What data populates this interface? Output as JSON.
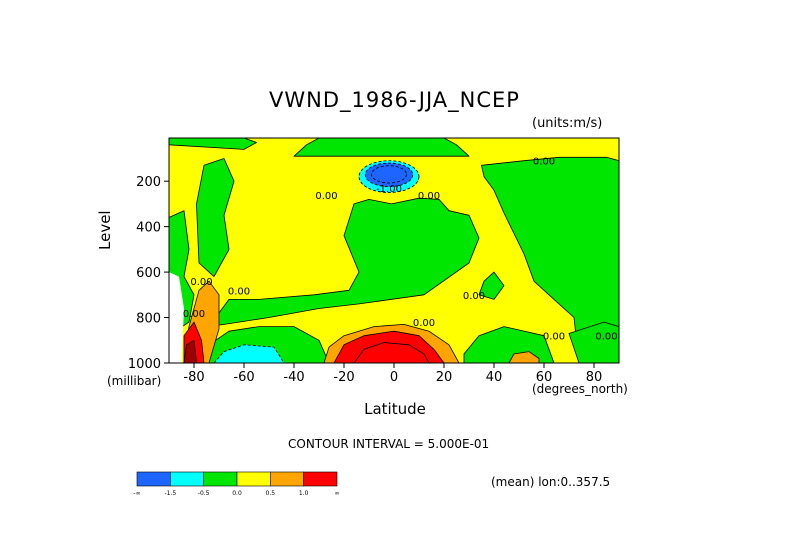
{
  "chart_data": {
    "type": "heatmap",
    "title": "VWND_1986-JJA_NCEP",
    "units_label": "(units:m/s)",
    "xlabel": "Latitude",
    "ylabel": "Level",
    "x_unit_label": "(degrees_north)",
    "y_unit_label": "(millibar)",
    "xlim": [
      -90,
      90
    ],
    "ylim": [
      1000,
      10
    ],
    "x_ticks": [
      -80,
      -60,
      -40,
      -20,
      0,
      20,
      40,
      60,
      80
    ],
    "y_ticks": [
      200,
      400,
      600,
      800,
      1000
    ],
    "contour_interval_text": "CONTOUR INTERVAL = 5.000E-01",
    "subset_text": "(mean) lon:0..357.5",
    "contour_labels": [
      {
        "text": "0.00",
        "lat": 60,
        "level": 110
      },
      {
        "text": "-1.00",
        "lat": -2,
        "level": 230
      },
      {
        "text": "0.00",
        "lat": -27,
        "level": 260
      },
      {
        "text": "0.00",
        "lat": 14,
        "level": 260
      },
      {
        "text": "0.00",
        "lat": -77,
        "level": 640
      },
      {
        "text": "0.00",
        "lat": -62,
        "level": 680
      },
      {
        "text": "0.00",
        "lat": -80,
        "level": 780
      },
      {
        "text": "0.00",
        "lat": 32,
        "level": 700
      },
      {
        "text": "0.00",
        "lat": 12,
        "level": 820
      },
      {
        "text": "0.00",
        "lat": 64,
        "level": 880
      },
      {
        "text": "0.00",
        "lat": 85,
        "level": 880
      }
    ],
    "features": [
      {
        "kind": "minimum",
        "lat": -2,
        "level": 180,
        "value": -2.0
      },
      {
        "kind": "maximum",
        "lat": -5,
        "level": 970,
        "value": 2.6
      },
      {
        "kind": "maximum",
        "lat": -82,
        "level": 930,
        "value": 3.0
      },
      {
        "kind": "minimum",
        "lat": -60,
        "level": 960,
        "value": -1.2
      },
      {
        "kind": "maximum",
        "lat": 52,
        "level": 980,
        "value": 0.7
      }
    ],
    "legend": {
      "colors": [
        "#1e64ff",
        "#00ffff",
        "#00e600",
        "#ffff00",
        "#ffa500",
        "#ff0000"
      ],
      "labels": [
        "-∞",
        "-1.5",
        "-0.5",
        "0.0",
        "0.5",
        "1.0",
        "∞"
      ]
    },
    "fill_colors": {
      "below_m1": "#1e64ff",
      "m1_to_m05": "#00ffff",
      "m05_to_0": "#00e600",
      "0_to_05": "#ffff00",
      "05_to_1": "#ffa500",
      "above_1": "#ff0000",
      "above_2": "#a00000"
    }
  }
}
